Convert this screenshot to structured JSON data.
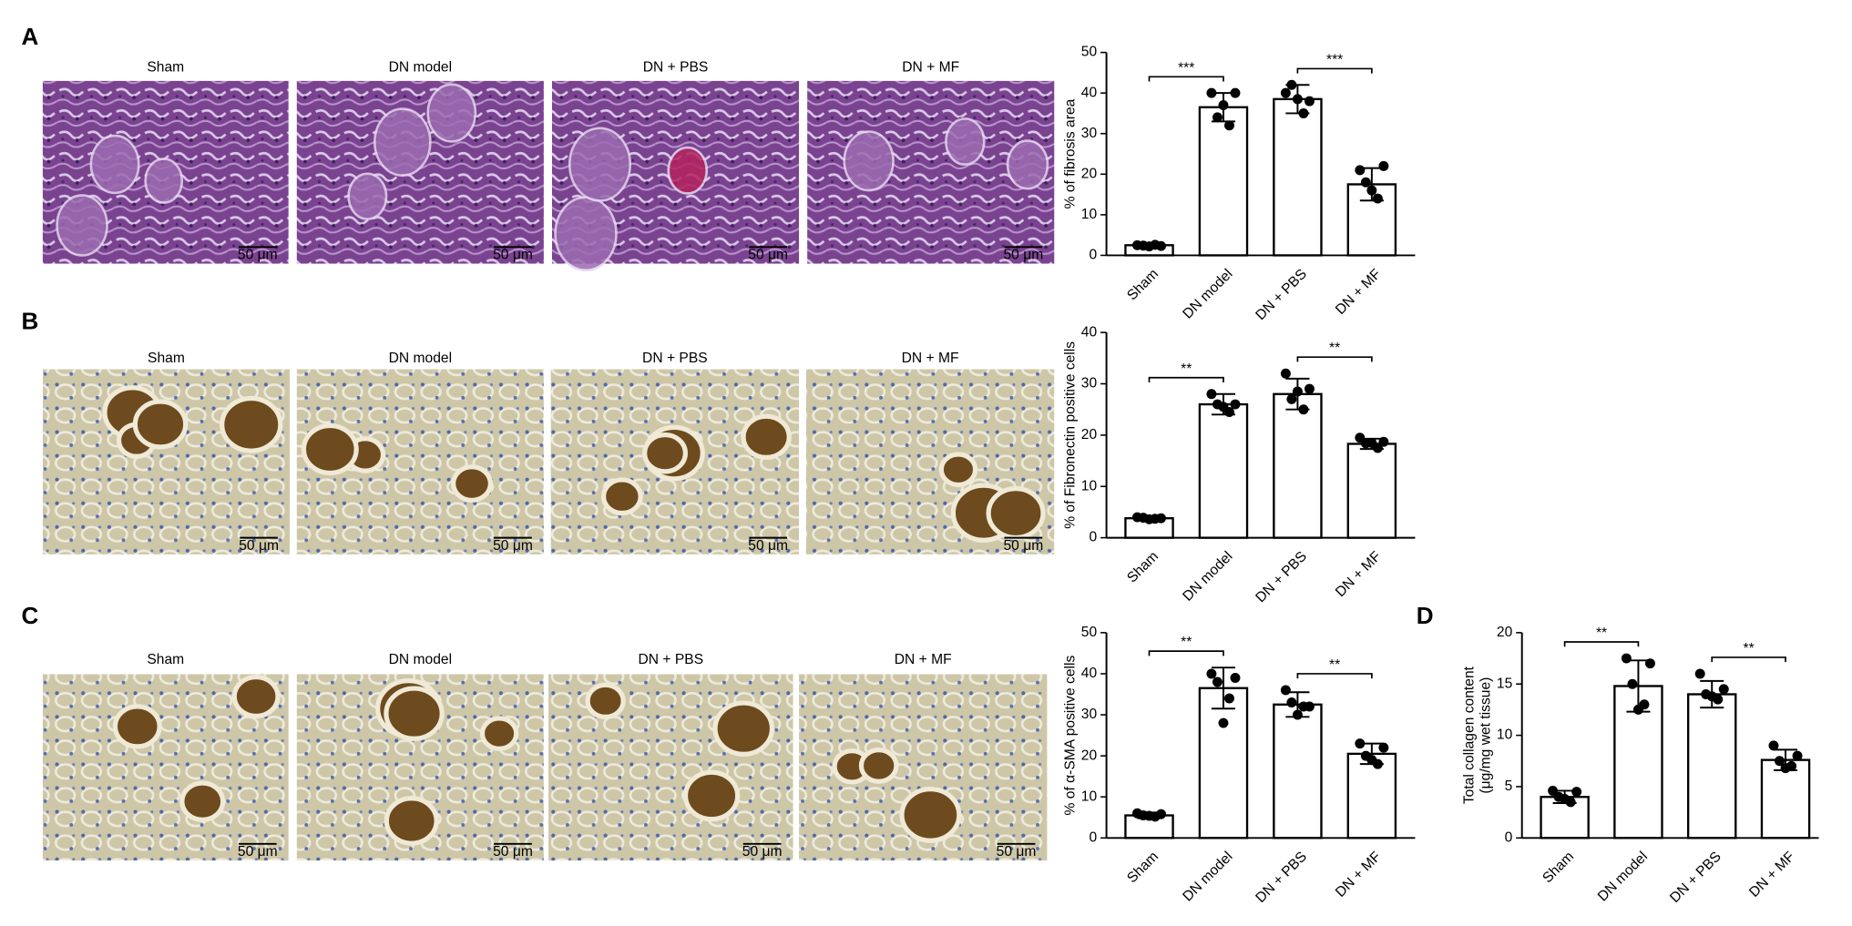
{
  "panels": [
    {
      "label": "A",
      "images": [
        {
          "title": "Sham",
          "scale_bar": "50 μm"
        },
        {
          "title": "DN model",
          "scale_bar": "50 μm"
        },
        {
          "title": "DN + PBS",
          "scale_bar": "50 μm"
        },
        {
          "title": "DN + MF",
          "scale_bar": "50 μm"
        }
      ]
    },
    {
      "label": "B",
      "images": [
        {
          "title": "Sham",
          "scale_bar": "50 μm"
        },
        {
          "title": "DN model",
          "scale_bar": "50 μm"
        },
        {
          "title": "DN + PBS",
          "scale_bar": "50 μm"
        },
        {
          "title": "DN + MF",
          "scale_bar": "50 μm"
        }
      ]
    },
    {
      "label": "C",
      "images": [
        {
          "title": "Sham",
          "scale_bar": "50 μm"
        },
        {
          "title": "DN model",
          "scale_bar": "50 μm"
        },
        {
          "title": "DN + PBS",
          "scale_bar": "50 μm"
        },
        {
          "title": "DN + MF",
          "scale_bar": "50 μm"
        }
      ]
    },
    {
      "label": "D",
      "images": []
    }
  ],
  "chart_data": [
    {
      "type": "bar",
      "ylabel": [
        "% of fibrosis area"
      ],
      "categories": [
        "Sham",
        "DN model",
        "DN + PBS",
        "DN + MF"
      ],
      "values": [
        2.5,
        36.5,
        38.5,
        17.5
      ],
      "errors": [
        0.5,
        3.5,
        3.5,
        4
      ],
      "points": [
        [
          2.5,
          2.3,
          2.4,
          2.6,
          2.2
        ],
        [
          40,
          40,
          34,
          32,
          37
        ],
        [
          40,
          38,
          42,
          35,
          38.5
        ],
        [
          21,
          22,
          18,
          14,
          16
        ]
      ],
      "ylim": [
        0,
        50
      ],
      "yticks": [
        0,
        10,
        20,
        30,
        40,
        50
      ],
      "color": "#ffffff",
      "annotations": [
        {
          "between": [
            "Sham",
            "DN model"
          ],
          "text": "***"
        },
        {
          "between": [
            "DN + PBS",
            "DN + MF"
          ],
          "text": "***"
        }
      ]
    },
    {
      "type": "bar",
      "ylabel": [
        "% of Fibronectin positive cells"
      ],
      "categories": [
        "Sham",
        "DN model",
        "DN + PBS",
        "DN + MF"
      ],
      "values": [
        3.8,
        26,
        28,
        18.3
      ],
      "errors": [
        0.4,
        2,
        3,
        1
      ],
      "points": [
        [
          4,
          3.8,
          3.9,
          3.7,
          3.6
        ],
        [
          28,
          26,
          26,
          24.5,
          25.5
        ],
        [
          32,
          29,
          27,
          25,
          28.5
        ],
        [
          19.5,
          18.7,
          18.4,
          17.5,
          18.5
        ]
      ],
      "ylim": [
        0,
        40
      ],
      "yticks": [
        0,
        10,
        20,
        30,
        40
      ],
      "color": "#ffffff",
      "annotations": [
        {
          "between": [
            "Sham",
            "DN model"
          ],
          "text": "**"
        },
        {
          "between": [
            "DN + PBS",
            "DN + MF"
          ],
          "text": "**"
        }
      ]
    },
    {
      "type": "bar",
      "ylabel": [
        "% of α-SMA positive cells"
      ],
      "categories": [
        "Sham",
        "DN model",
        "DN + PBS",
        "DN + MF"
      ],
      "values": [
        5.5,
        36.5,
        32.5,
        20.5
      ],
      "errors": [
        0.7,
        5,
        3,
        2.5
      ],
      "points": [
        [
          6,
          5.8,
          5.5,
          5.2,
          5.4
        ],
        [
          40,
          39,
          38,
          34,
          28
        ],
        [
          36,
          32,
          33,
          32,
          30
        ],
        [
          23,
          22,
          20,
          18,
          19
        ]
      ],
      "ylim": [
        0,
        50
      ],
      "yticks": [
        0,
        10,
        20,
        30,
        40,
        50
      ],
      "color": "#ffffff",
      "annotations": [
        {
          "between": [
            "Sham",
            "DN model"
          ],
          "text": "**"
        },
        {
          "between": [
            "DN + PBS",
            "DN + MF"
          ],
          "text": "**"
        }
      ]
    },
    {
      "type": "bar",
      "ylabel": [
        "Total collagen content",
        "(μg/mg wet tissue)"
      ],
      "categories": [
        "Sham",
        "DN model",
        "DN + PBS",
        "DN + MF"
      ],
      "values": [
        4,
        14.8,
        14,
        7.6
      ],
      "errors": [
        0.6,
        2.5,
        1.3,
        1
      ],
      "points": [
        [
          4.6,
          4.5,
          4,
          3.5,
          3.8
        ],
        [
          17.5,
          17,
          15,
          13,
          12.5
        ],
        [
          16,
          14.5,
          14,
          13.5,
          13.8
        ],
        [
          9,
          8,
          7.5,
          7,
          6.8
        ]
      ],
      "ylim": [
        0,
        20
      ],
      "yticks": [
        0,
        5,
        10,
        15,
        20
      ],
      "color": "#ffffff",
      "annotations": [
        {
          "between": [
            "Sham",
            "DN model"
          ],
          "text": "**"
        },
        {
          "between": [
            "DN + PBS",
            "DN + MF"
          ],
          "text": "**"
        }
      ]
    }
  ]
}
